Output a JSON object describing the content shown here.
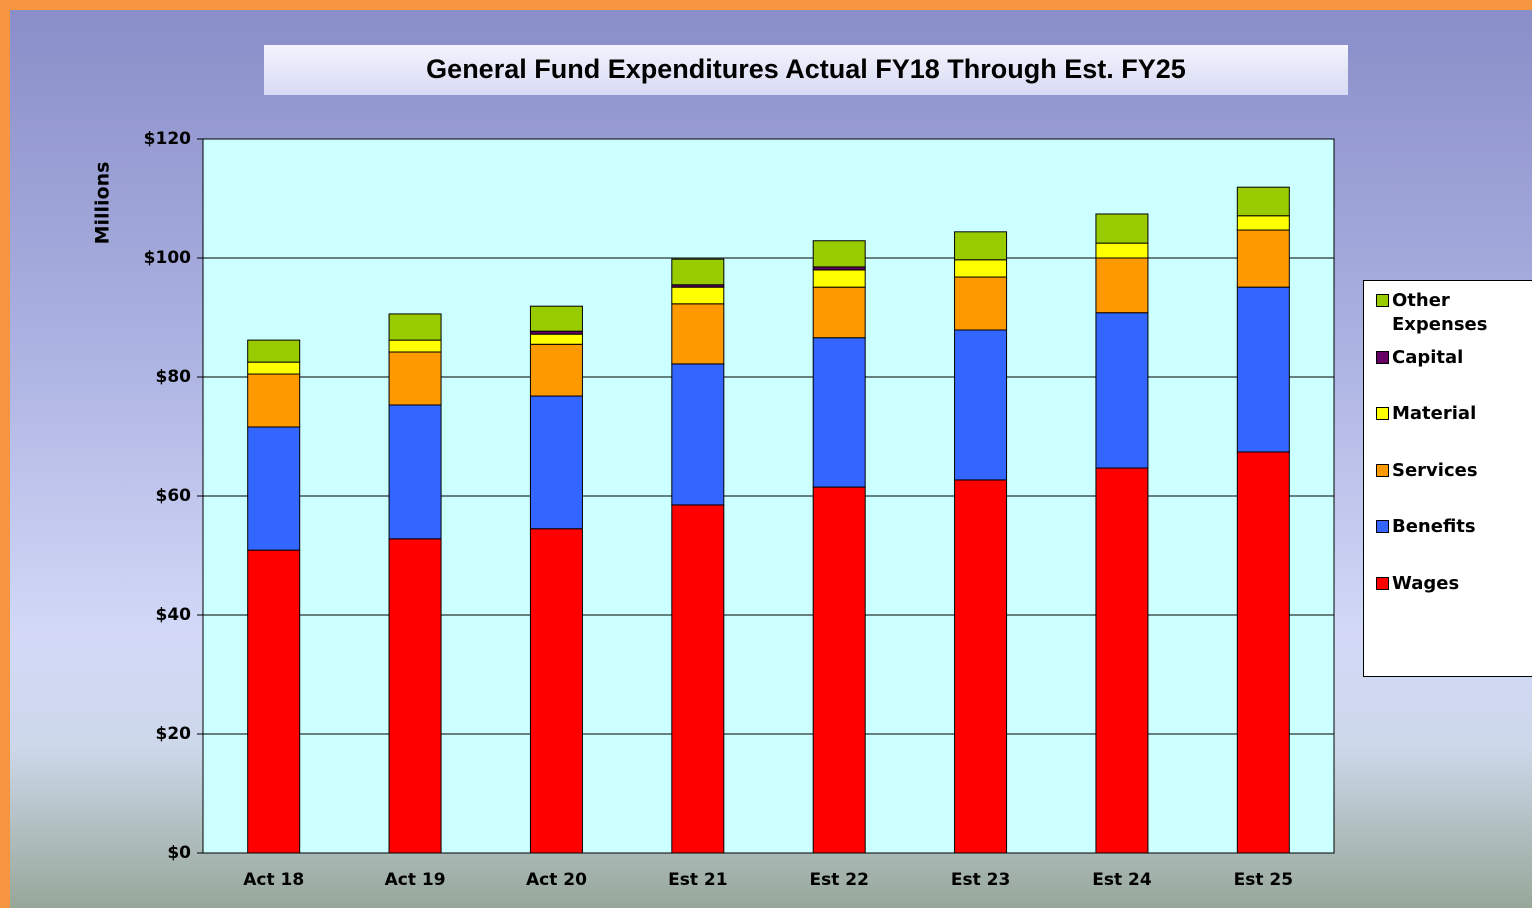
{
  "chart_data": {
    "type": "stacked_bar",
    "title": "General Fund Expenditures Actual FY18  Through Est. FY25",
    "y_label": "Millions",
    "categories": [
      "Act 18",
      "Act 19",
      "Act 20",
      "Est 21",
      "Est 22",
      "Est 23",
      "Est 24",
      "Est 25"
    ],
    "series": [
      {
        "name": "Wages",
        "color": "#ff0000",
        "values": [
          50.9,
          52.8,
          54.5,
          58.5,
          61.5,
          62.7,
          64.7,
          67.4
        ]
      },
      {
        "name": "Benefits",
        "color": "#3366ff",
        "values": [
          20.7,
          22.5,
          22.3,
          23.7,
          25.1,
          25.2,
          26.1,
          27.7
        ]
      },
      {
        "name": "Services",
        "color": "#ff9900",
        "values": [
          8.9,
          8.9,
          8.7,
          10.1,
          8.5,
          8.9,
          9.2,
          9.6
        ]
      },
      {
        "name": "Material",
        "color": "#ffff00",
        "values": [
          2.0,
          2.0,
          1.7,
          2.8,
          2.9,
          2.9,
          2.5,
          2.4
        ]
      },
      {
        "name": "Capital",
        "color": "#660066",
        "values": [
          0,
          0,
          0.5,
          0.4,
          0.5,
          0,
          0,
          0
        ]
      },
      {
        "name": "Other Expenses",
        "color": "#99cc00",
        "values": [
          3.7,
          4.4,
          4.2,
          4.3,
          4.4,
          4.7,
          4.9,
          4.8
        ]
      }
    ],
    "ylim": [
      0,
      120
    ],
    "yticks": [
      {
        "value": 0,
        "label": "$0"
      },
      {
        "value": 20,
        "label": "$20"
      },
      {
        "value": 40,
        "label": "$40"
      },
      {
        "value": 60,
        "label": "$60"
      },
      {
        "value": 80,
        "label": "$80"
      },
      {
        "value": 100,
        "label": "$100"
      },
      {
        "value": 120,
        "label": "$120"
      }
    ],
    "grid": true,
    "legend": "right",
    "plot_background": "#ccffff"
  }
}
